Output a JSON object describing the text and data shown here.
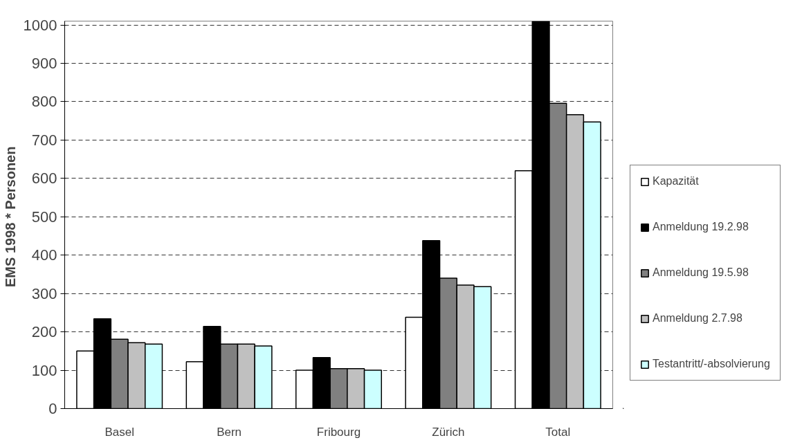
{
  "chart_data": {
    "type": "bar",
    "ylabel": "EMS 1998  * Personen",
    "categories": [
      "Basel",
      "Bern",
      "Fribourg",
      "Zürich",
      "Total"
    ],
    "series": [
      {
        "name": "Kapazität",
        "color": "#ffffff",
        "values": [
          150,
          122,
          100,
          238,
          620
        ]
      },
      {
        "name": "Anmeldung 19.2.98",
        "color": "#000000",
        "values": [
          234,
          214,
          133,
          438,
          1009
        ]
      },
      {
        "name": "Anmeldung 19.5.98",
        "color": "#808080",
        "values": [
          181,
          168,
          104,
          340,
          796
        ]
      },
      {
        "name": "Anmeldung 2.7.98",
        "color": "#c0c0c0",
        "values": [
          172,
          168,
          104,
          322,
          766
        ]
      },
      {
        "name": "Testantritt/-absolvierung",
        "color": "#ccffff",
        "values": [
          168,
          163,
          100,
          318,
          747
        ]
      }
    ],
    "ylim": [
      0,
      1010
    ],
    "yticks": [
      0,
      100,
      200,
      300,
      400,
      500,
      600,
      700,
      800,
      900,
      1000
    ],
    "grid": "y",
    "legend": "right"
  }
}
